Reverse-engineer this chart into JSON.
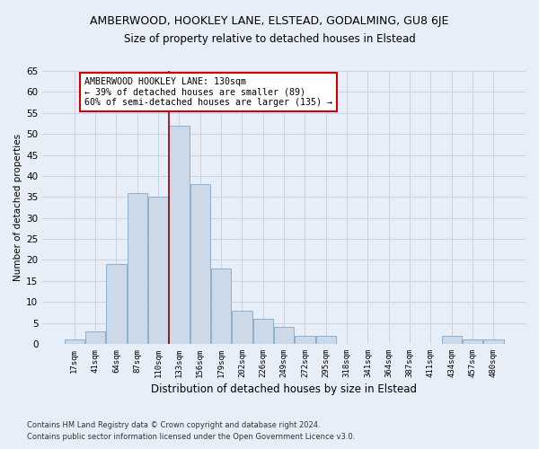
{
  "title": "AMBERWOOD, HOOKLEY LANE, ELSTEAD, GODALMING, GU8 6JE",
  "subtitle": "Size of property relative to detached houses in Elstead",
  "xlabel": "Distribution of detached houses by size in Elstead",
  "ylabel": "Number of detached properties",
  "footnote1": "Contains HM Land Registry data © Crown copyright and database right 2024.",
  "footnote2": "Contains public sector information licensed under the Open Government Licence v3.0.",
  "bar_labels": [
    "17sqm",
    "41sqm",
    "64sqm",
    "87sqm",
    "110sqm",
    "133sqm",
    "156sqm",
    "179sqm",
    "202sqm",
    "226sqm",
    "249sqm",
    "272sqm",
    "295sqm",
    "318sqm",
    "341sqm",
    "364sqm",
    "387sqm",
    "411sqm",
    "434sqm",
    "457sqm",
    "480sqm"
  ],
  "bar_values": [
    1,
    3,
    19,
    36,
    35,
    52,
    38,
    18,
    8,
    6,
    4,
    2,
    2,
    0,
    0,
    0,
    0,
    0,
    2,
    1,
    1
  ],
  "bar_color": "#ccd9e8",
  "bar_edge_color": "#7fa8c8",
  "highlight_index": 5,
  "highlight_line_xoffset": -0.5,
  "highlight_line_color": "#990000",
  "annotation_text": "AMBERWOOD HOOKLEY LANE: 130sqm\n← 39% of detached houses are smaller (89)\n60% of semi-detached houses are larger (135) →",
  "annotation_box_color": "#ffffff",
  "annotation_box_edge_color": "#cc0000",
  "ylim": [
    0,
    65
  ],
  "yticks": [
    0,
    5,
    10,
    15,
    20,
    25,
    30,
    35,
    40,
    45,
    50,
    55,
    60,
    65
  ],
  "grid_color": "#c8d4e4",
  "background_color": "#e8eef8",
  "title_fontsize": 9,
  "subtitle_fontsize": 8.5
}
